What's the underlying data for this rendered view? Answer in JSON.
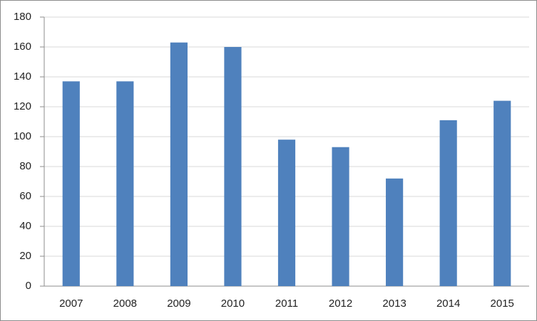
{
  "chart_data": {
    "type": "bar",
    "categories": [
      "2007",
      "2008",
      "2009",
      "2010",
      "2011",
      "2012",
      "2013",
      "2014",
      "2015"
    ],
    "values": [
      137,
      137,
      163,
      160,
      98,
      93,
      72,
      111,
      124
    ],
    "color": "#4f81bd",
    "ylim": [
      0,
      180
    ],
    "yticks": [
      0,
      20,
      40,
      60,
      80,
      100,
      120,
      140,
      160,
      180
    ],
    "grid": true
  }
}
